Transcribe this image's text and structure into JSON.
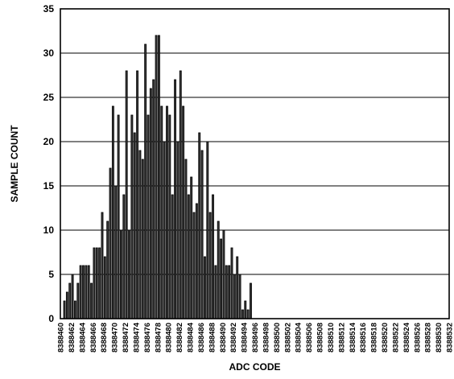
{
  "chart_data": {
    "type": "bar",
    "xlabel": "ADC CODE",
    "ylabel": "SAMPLE COUNT",
    "ylim": [
      0,
      35
    ],
    "yticks": [
      0,
      5,
      10,
      15,
      20,
      25,
      30,
      35
    ],
    "grid": "horizontal",
    "x_start": 8388460,
    "x_end": 8388532,
    "bars_per_code": 2,
    "tick_step": 2,
    "values": [
      2,
      3,
      4,
      5,
      2,
      4,
      6,
      6,
      6,
      6,
      4,
      8,
      8,
      8,
      12,
      7,
      11,
      17,
      24,
      15,
      23,
      10,
      14,
      28,
      10,
      23,
      21,
      28,
      19,
      18,
      31,
      23,
      26,
      27,
      32,
      32,
      24,
      20,
      24,
      23,
      14,
      27,
      20,
      28,
      24,
      18,
      14,
      16,
      12,
      13,
      21,
      19,
      7,
      20,
      12,
      14,
      6,
      11,
      9,
      10,
      6,
      6,
      8,
      5,
      7,
      5,
      1,
      2,
      1,
      4
    ]
  }
}
